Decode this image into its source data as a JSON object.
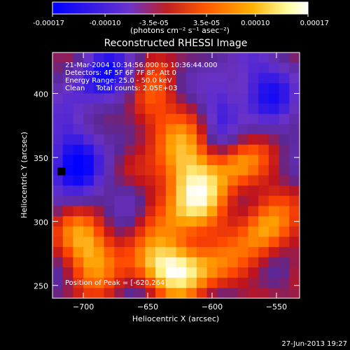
{
  "colorbar": {
    "tick_labels": [
      "-0.00017",
      "-0.00010",
      "-3.5e-05",
      "3.5e-05",
      "0.00010",
      "0.00017"
    ],
    "tick_values": [
      -0.00017,
      -0.0001,
      -3.5e-05,
      3.5e-05,
      0.0001,
      0.00017
    ],
    "units": "(photons cm⁻² s⁻¹ asec⁻²)",
    "range": [
      -0.00017,
      0.00017
    ],
    "colors": [
      "#0000ff",
      "#6a33cc",
      "#c02020",
      "#ff5a00",
      "#ffb000",
      "#ffffa0",
      "#ffffff"
    ]
  },
  "chart_data": {
    "type": "heatmap",
    "title": "Reconstructed RHESSI Image",
    "xlabel": "Heliocentric X (arcsec)",
    "ylabel": "Heliocentric Y (arcsec)",
    "xlim": [
      -724,
      -532
    ],
    "ylim": [
      240,
      432
    ],
    "x_ticks": [
      -700,
      -650,
      -600,
      -550
    ],
    "x_tick_labels": [
      "−700",
      "−650",
      "−600",
      "−550"
    ],
    "y_ticks": [
      250,
      300,
      350,
      400
    ],
    "y_tick_labels": [
      "250",
      "300",
      "350",
      "400"
    ],
    "grid": false,
    "annotations": {
      "time_range": "21-Mar-2004 10:34:56.000 to 10:36:44.000",
      "detectors": "Detectors: 4F 5F 6F 7F 8F, Att 0",
      "energy": "Energy Range: 25.0 - 50.0 keV",
      "method": "Clean     Total counts: 2.05E+03",
      "peak": "Position of Peak = [-620,264]"
    },
    "peak_position": [
      -620,
      264
    ],
    "marker_position": [
      -717,
      339
    ],
    "grid_cols": 24,
    "grid_rows": 24,
    "intensity_grid_note": "levels from -1 (blue, min) to 1 (white, max), row 0 = top"
  },
  "footer": {
    "date": "27-Jun-2013 19:27"
  }
}
